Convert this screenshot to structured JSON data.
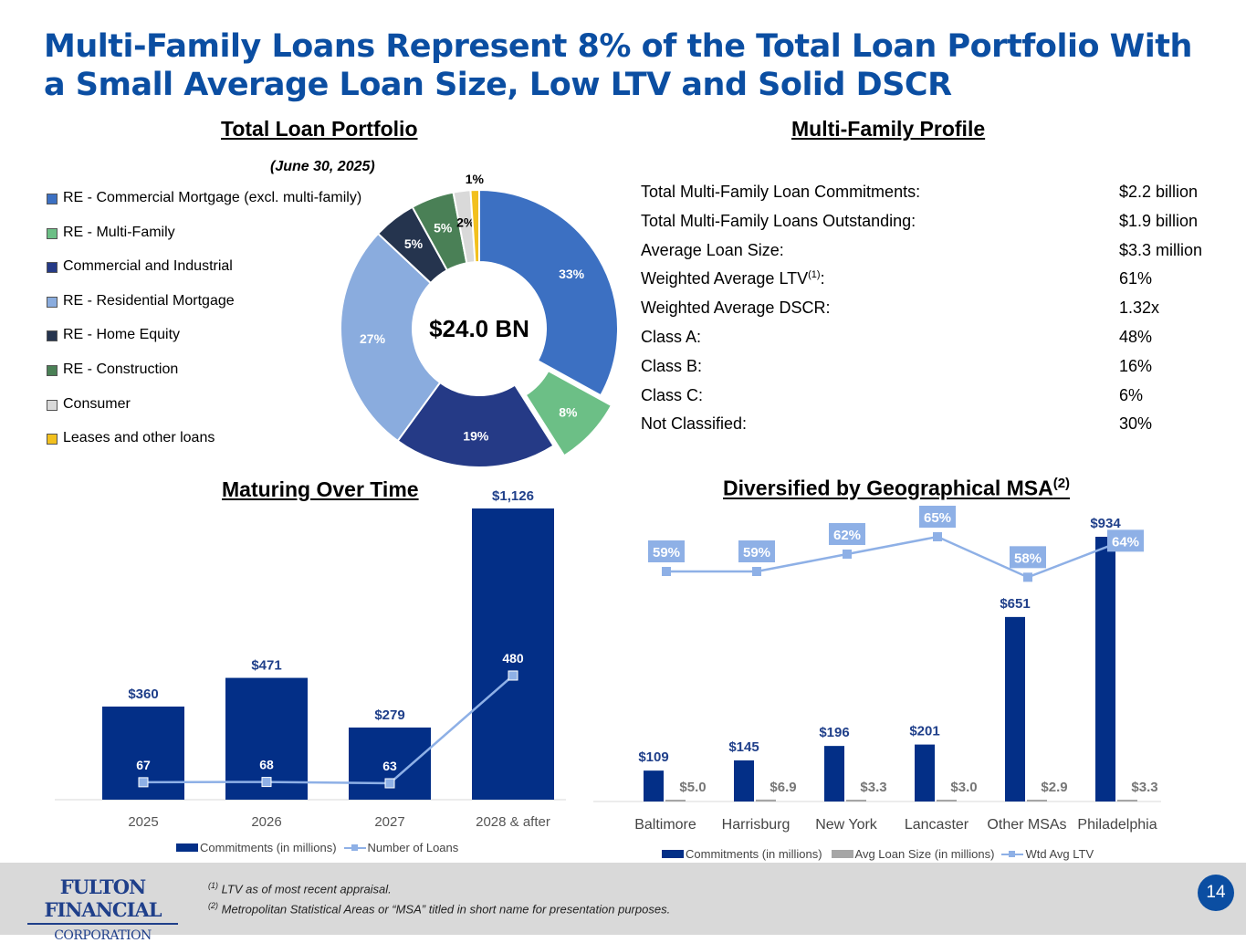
{
  "title": "Multi-Family Loans Represent 8% of the Total Loan Portfolio With a Small Average Loan Size, Low LTV and Solid DSCR",
  "sections": {
    "total_portfolio": "Total Loan Portfolio",
    "as_of": "(June 30,  2025)",
    "profile": "Multi-Family  Profile",
    "maturing": "Maturing Over Time",
    "msa": "Diversified by Geographical MSA",
    "msa_sup": "(2)"
  },
  "profile_rows": [
    {
      "label": "Total Multi-Family Loan Commitments:",
      "value": "$2.2 billion"
    },
    {
      "label": "Total Multi-Family Loans Outstanding:",
      "value": "$1.9 billion"
    },
    {
      "label": "Average Loan Size:",
      "value": "$3.3 million"
    },
    {
      "label": "Weighted Average LTV",
      "sup": "(1)",
      "suffix": ":",
      "value": "61%"
    },
    {
      "label": "Weighted Average DSCR:",
      "value": "1.32x"
    },
    {
      "label": "Class A:",
      "value": "48%"
    },
    {
      "label": "Class B:",
      "value": "16%"
    },
    {
      "label": "Class C:",
      "value": "6%"
    },
    {
      "label": "Not Classified:",
      "value": "30%"
    }
  ],
  "chart_data": [
    {
      "type": "pie",
      "variant": "donut",
      "center_label": "$24.0 BN",
      "categories": [
        "RE - Commercial Mortgage (excl. multi-family)",
        "RE - Multi-Family",
        "Commercial and Industrial",
        "RE - Residential Mortgage",
        "RE - Home Equity",
        "RE - Construction",
        "Consumer",
        "Leases and other loans"
      ],
      "values": [
        33,
        8,
        19,
        27,
        5,
        5,
        2,
        1
      ],
      "labels": [
        "33%",
        "8%",
        "19%",
        "27%",
        "5%",
        "5%",
        "2%",
        "1%"
      ],
      "colors": [
        "#3c70c2",
        "#6cbf86",
        "#253a86",
        "#8aacde",
        "#25344e",
        "#4a8056",
        "#d9d9d9",
        "#f2c01e"
      ],
      "exploded": "RE - Multi-Family",
      "legend": "left"
    },
    {
      "type": "bar",
      "categories": [
        "2025",
        "2026",
        "2027",
        "2028 & after"
      ],
      "series": [
        {
          "name": "Commitments (in millions)",
          "type": "bar",
          "values": [
            360,
            471,
            279,
            1126
          ],
          "labels": [
            "$360",
            "$471",
            "$279",
            "$1,126"
          ],
          "color": "#032f87"
        },
        {
          "name": "Number of Loans",
          "type": "line",
          "values": [
            67,
            68,
            63,
            480
          ],
          "labels": [
            "67",
            "68",
            "63",
            "480"
          ],
          "color": "#8eb0e6"
        }
      ],
      "legend": "bottom",
      "grid": false
    },
    {
      "type": "bar",
      "categories": [
        "Baltimore",
        "Harrisburg",
        "New York",
        "Lancaster",
        "Other MSAs",
        "Philadelphia"
      ],
      "series": [
        {
          "name": "Commitments (in millions)",
          "type": "bar",
          "values": [
            109,
            145,
            196,
            201,
            651,
            934
          ],
          "labels": [
            "$109",
            "$145",
            "$196",
            "$201",
            "$651",
            "$934"
          ],
          "color": "#032f87"
        },
        {
          "name": "Avg Loan Size (in millions)",
          "type": "bar",
          "values": [
            5.0,
            6.9,
            3.3,
            3.0,
            2.9,
            3.3
          ],
          "labels": [
            "$5.0",
            "$6.9",
            "$3.3",
            "$3.0",
            "$2.9",
            "$3.3"
          ],
          "color": "#a6a6a6"
        },
        {
          "name": "Wtd Avg LTV",
          "type": "line",
          "values": [
            59,
            59,
            62,
            65,
            58,
            64
          ],
          "labels": [
            "59%",
            "59%",
            "62%",
            "65%",
            "58%",
            "64%"
          ],
          "color": "#8eb0e6"
        }
      ],
      "legend": "bottom",
      "grid": false
    }
  ],
  "footer": {
    "logo_line1": "FULTON FINANCIAL",
    "logo_line2": "CORPORATION",
    "note1_sup": "(1)",
    "note1": " LTV as of most recent appraisal.",
    "note2_sup": "(2)",
    "note2": " Metropolitan Statistical Areas or “MSA” titled in short name for presentation purposes.",
    "page_number": "14"
  }
}
